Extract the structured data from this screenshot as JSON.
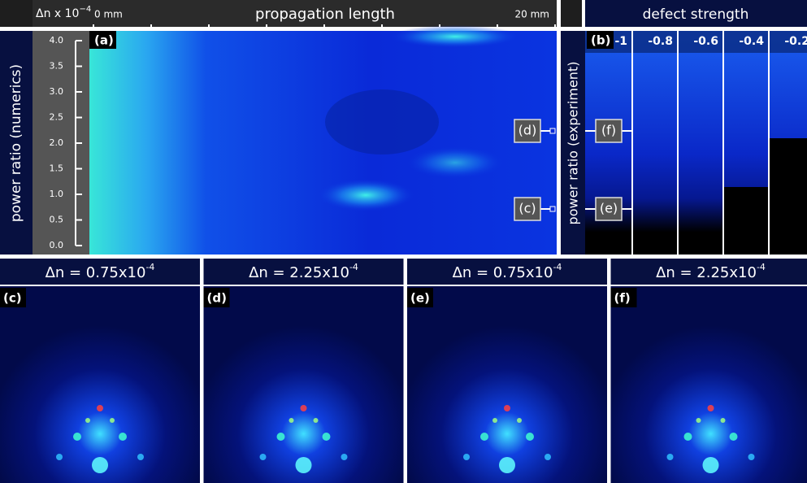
{
  "panel_a": {
    "label": "(a)",
    "unit_label": "Δn x 10",
    "unit_exp": "−4",
    "x_start": "0 mm",
    "x_title": "propagation length",
    "x_end": "20 mm",
    "y_title": "power ratio (numerics)",
    "yticks": [
      "4.0",
      "3.5",
      "3.0",
      "2.5",
      "2.0",
      "1.5",
      "1.0",
      "0.5",
      "0.0"
    ],
    "markers": [
      "(d)",
      "(c)"
    ]
  },
  "panel_b": {
    "label": "(b)",
    "title": "defect strength",
    "columns": [
      "-1",
      "-0.8",
      "-0.6",
      "-0.4",
      "-0.2"
    ],
    "y_title": "power ratio (experiment)",
    "markers": [
      "(f)",
      "(e)"
    ]
  },
  "bottom": [
    {
      "header": "Δn = 0.75x10",
      "exp": "-4",
      "label": "(c)"
    },
    {
      "header": "Δn = 2.25x10",
      "exp": "-4",
      "label": "(d)"
    },
    {
      "header": "Δn = 0.75x10",
      "exp": "-4",
      "label": "(e)"
    },
    {
      "header": "Δn = 2.25x10",
      "exp": "-4",
      "label": "(f)"
    }
  ]
}
